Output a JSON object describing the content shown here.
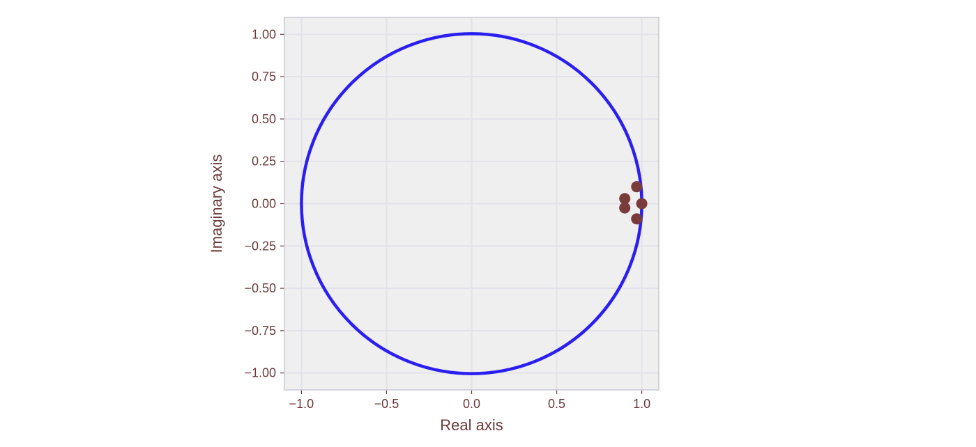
{
  "chart_data": {
    "type": "scatter",
    "title": "",
    "xlabel": "Real axis",
    "ylabel": "Imaginary axis",
    "xlim": [
      -1.1,
      1.1
    ],
    "ylim": [
      -1.1,
      1.1
    ],
    "xticks": [
      -1.0,
      -0.5,
      0.0,
      0.5,
      1.0
    ],
    "xtick_labels": [
      "−1.0",
      "−0.5",
      "0.0",
      "0.5",
      "1.0"
    ],
    "yticks": [
      1.0,
      0.75,
      0.5,
      0.25,
      0.0,
      -0.25,
      -0.5,
      -0.75,
      -1.0
    ],
    "ytick_labels": [
      "1.00",
      "0.75",
      "0.50",
      "0.25",
      "0.00",
      "−0.25",
      "−0.50",
      "−0.75",
      "−1.00"
    ],
    "grid": true,
    "unit_circle": {
      "radius": 1.0,
      "color": "#2b1ef0"
    },
    "points": [
      {
        "x": 0.97,
        "y": 0.1
      },
      {
        "x": 0.9,
        "y": 0.03
      },
      {
        "x": 0.9,
        "y": -0.025
      },
      {
        "x": 1.0,
        "y": 0.0
      },
      {
        "x": 0.97,
        "y": -0.09
      }
    ],
    "point_color": "#7a3b3b",
    "background_color": "#efefef",
    "grid_color": "#e2e2ea"
  }
}
